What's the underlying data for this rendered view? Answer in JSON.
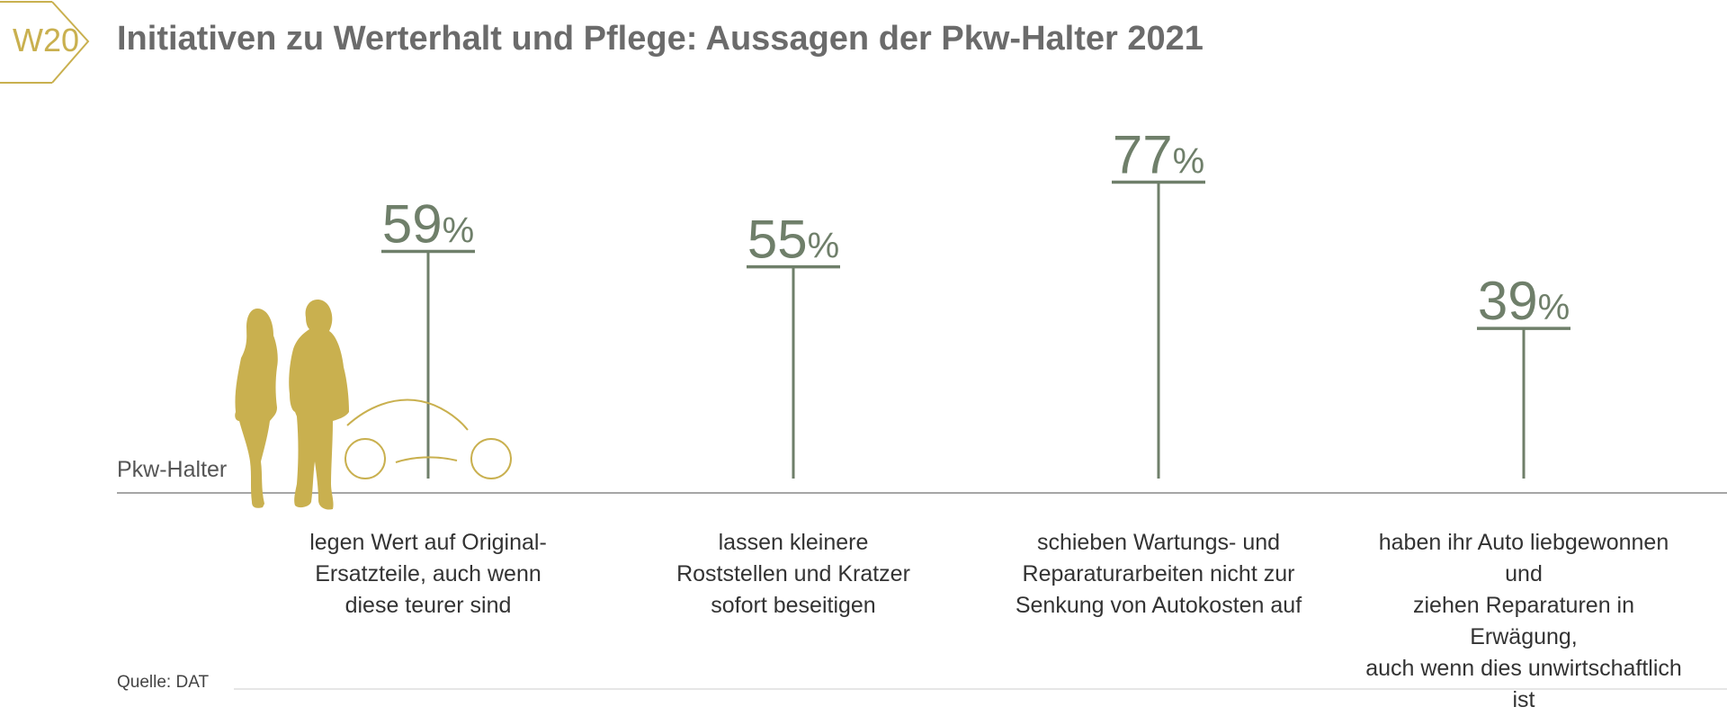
{
  "header": {
    "badge": "W20",
    "title": "Initiativen zu Werterhalt und Pflege: Aussagen der Pkw-Halter 2021"
  },
  "colors": {
    "accent": "#c9b04f",
    "bar": "#6f7f6a",
    "title": "#6b6b6b",
    "axis": "#888888"
  },
  "chart_data": {
    "type": "bar",
    "series_label": "Pkw-Halter",
    "unit": "%",
    "categories": [
      "legen Wert auf Original-\nErsatzteile, auch wenn\ndiese teurer sind",
      "lassen kleinere\nRoststellen und Kratzer\nsofort beseitigen",
      "schieben Wartungs- und\nReparaturarbeiten nicht zur\nSenkung von Autokosten auf",
      "haben ihr Auto liebgewonnen und\nziehen Reparaturen in Erwägung,\nauch wenn dies unwirtschaftlich ist"
    ],
    "values": [
      59,
      55,
      77,
      39
    ],
    "ylim": [
      0,
      100
    ]
  },
  "source": "Quelle: DAT"
}
